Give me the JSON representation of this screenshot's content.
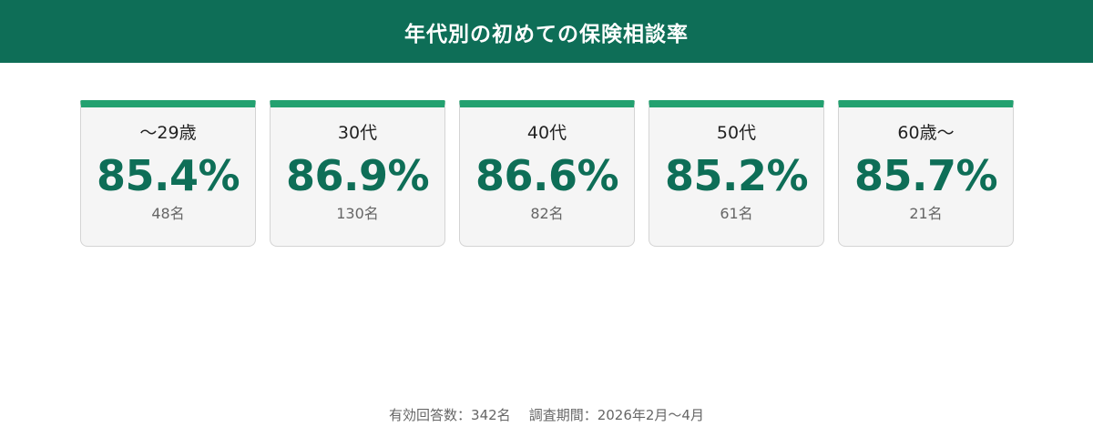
{
  "header": {
    "title": "年代別の初めての保険相談率"
  },
  "cards": [
    {
      "label": "〜29歳",
      "rate": "85.4%",
      "count": "48名"
    },
    {
      "label": "30代",
      "rate": "86.9%",
      "count": "130名"
    },
    {
      "label": "40代",
      "rate": "86.6%",
      "count": "82名"
    },
    {
      "label": "50代",
      "rate": "85.2%",
      "count": "61名"
    },
    {
      "label": "60歳〜",
      "rate": "85.7%",
      "count": "21名"
    }
  ],
  "footer": {
    "responses": "有効回答数：342名",
    "period": "調査期間：2026年2月〜4月"
  },
  "colors": {
    "header_bg": "#0e6e57",
    "card_accent": "#23a170",
    "rate_text": "#0e6e57"
  }
}
